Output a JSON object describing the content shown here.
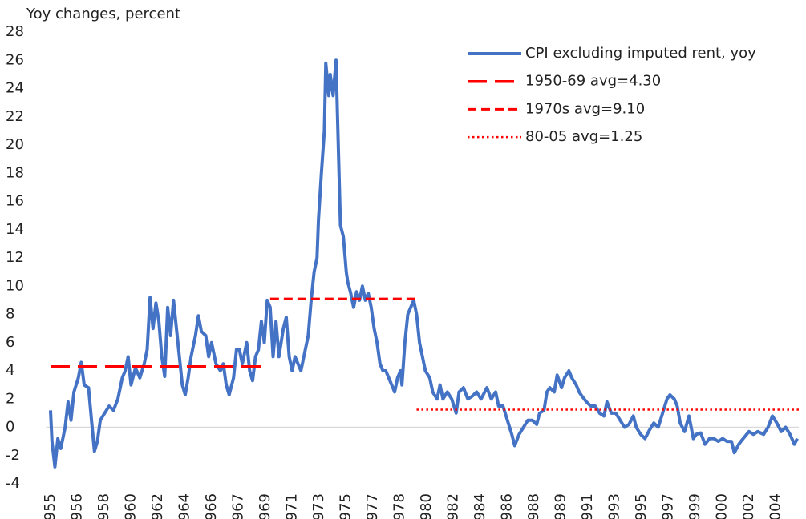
{
  "chart_data": {
    "type": "line",
    "ylabel": "Yoy changes, percent",
    "xlim": [
      1954.7,
      2006.1
    ],
    "xticks": [
      {
        "value": 1955,
        "label": "1955"
      },
      {
        "value": 1956.84,
        "label": "1956"
      },
      {
        "value": 1958.67,
        "label": "1958"
      },
      {
        "value": 1960.51,
        "label": "1960"
      },
      {
        "value": 1962.34,
        "label": "1962"
      },
      {
        "value": 1964.18,
        "label": "1964"
      },
      {
        "value": 1966.01,
        "label": "1966"
      },
      {
        "value": 1967.85,
        "label": "1967"
      },
      {
        "value": 1969.68,
        "label": "1969"
      },
      {
        "value": 1971.52,
        "label": "1971"
      },
      {
        "value": 1973.35,
        "label": "1973"
      },
      {
        "value": 1975.19,
        "label": "1975"
      },
      {
        "value": 1977.02,
        "label": "1977"
      },
      {
        "value": 1978.86,
        "label": "1978"
      },
      {
        "value": 1980.69,
        "label": "1980"
      },
      {
        "value": 1982.53,
        "label": "1982"
      },
      {
        "value": 1984.36,
        "label": "1984"
      },
      {
        "value": 1986.2,
        "label": "1986"
      },
      {
        "value": 1988.03,
        "label": "1988"
      },
      {
        "value": 1989.87,
        "label": "1989"
      },
      {
        "value": 1991.7,
        "label": "1991"
      },
      {
        "value": 1993.54,
        "label": "1993"
      },
      {
        "value": 1995.37,
        "label": "1995"
      },
      {
        "value": 1997.21,
        "label": "1997"
      },
      {
        "value": 1999.04,
        "label": "1999"
      },
      {
        "value": 2000.88,
        "label": "2000"
      },
      {
        "value": 2002.71,
        "label": "2002"
      },
      {
        "value": 2004.55,
        "label": "2004"
      }
    ],
    "ylim": [
      -4,
      28
    ],
    "yticks": [
      -4,
      -2,
      0,
      2,
      4,
      6,
      8,
      10,
      12,
      14,
      16,
      18,
      20,
      22,
      24,
      26,
      28
    ],
    "zero_line": true,
    "legend": "top-right",
    "series": [
      {
        "name": "CPI excluding imputed rent, yoy",
        "color": "#4472c4",
        "dash": "solid",
        "x": [
          1955.0,
          1955.1,
          1955.3,
          1955.5,
          1955.7,
          1956.0,
          1956.2,
          1956.4,
          1956.6,
          1956.9,
          1957.1,
          1957.3,
          1957.6,
          1957.8,
          1958.0,
          1958.2,
          1958.4,
          1958.7,
          1959.0,
          1959.3,
          1959.6,
          1959.9,
          1960.1,
          1960.3,
          1960.5,
          1960.8,
          1961.1,
          1961.4,
          1961.6,
          1961.8,
          1962.0,
          1962.2,
          1962.4,
          1962.6,
          1962.8,
          1963.0,
          1963.2,
          1963.4,
          1963.6,
          1963.8,
          1964.0,
          1964.2,
          1964.4,
          1964.6,
          1964.9,
          1965.1,
          1965.3,
          1965.6,
          1965.8,
          1966.0,
          1966.3,
          1966.6,
          1966.8,
          1967.0,
          1967.2,
          1967.5,
          1967.7,
          1967.9,
          1968.1,
          1968.4,
          1968.6,
          1968.8,
          1969.0,
          1969.2,
          1969.4,
          1969.6,
          1969.8,
          1970.0,
          1970.2,
          1970.4,
          1970.6,
          1970.9,
          1971.1,
          1971.3,
          1971.5,
          1971.7,
          1971.9,
          1972.1,
          1972.3,
          1972.6,
          1972.8,
          1973.0,
          1973.2,
          1973.3,
          1973.5,
          1973.7,
          1973.8,
          1974.0,
          1974.1,
          1974.3,
          1974.5,
          1974.6,
          1974.8,
          1975.0,
          1975.2,
          1975.3,
          1975.5,
          1975.7,
          1975.9,
          1976.1,
          1976.3,
          1976.5,
          1976.7,
          1976.9,
          1977.1,
          1977.3,
          1977.5,
          1977.7,
          1977.9,
          1978.1,
          1978.3,
          1978.5,
          1978.7,
          1978.9,
          1979.0,
          1979.2,
          1979.4,
          1979.6,
          1979.8,
          1980.0,
          1980.2,
          1980.4,
          1980.6,
          1980.9,
          1981.1,
          1981.4,
          1981.6,
          1981.8,
          1982.1,
          1982.4,
          1982.7,
          1982.9,
          1983.2,
          1983.5,
          1983.8,
          1984.1,
          1984.4,
          1984.8,
          1985.1,
          1985.4,
          1985.6,
          1985.9,
          1986.2,
          1986.5,
          1986.7,
          1987.0,
          1987.3,
          1987.6,
          1987.9,
          1988.2,
          1988.4,
          1988.7,
          1988.9,
          1989.1,
          1989.4,
          1989.6,
          1989.9,
          1990.1,
          1990.4,
          1990.6,
          1990.9,
          1991.1,
          1991.3,
          1991.6,
          1991.9,
          1992.2,
          1992.5,
          1992.8,
          1993.0,
          1993.3,
          1993.6,
          1993.9,
          1994.2,
          1994.5,
          1994.8,
          1995.0,
          1995.3,
          1995.6,
          1995.9,
          1996.2,
          1996.5,
          1996.8,
          1997.1,
          1997.3,
          1997.6,
          1997.8,
          1998.0,
          1998.3,
          1998.6,
          1998.9,
          1999.1,
          1999.4,
          1999.7,
          2000.0,
          2000.3,
          2000.6,
          2000.9,
          2001.2,
          2001.5,
          2001.7,
          2002.0,
          2002.3,
          2002.7,
          2003.0,
          2003.3,
          2003.7,
          2004.0,
          2004.3,
          2004.6,
          2004.9,
          2005.2,
          2005.5,
          2005.8,
          2006.0
        ],
        "values": [
          1.2,
          -1,
          -2.8,
          -0.8,
          -1.5,
          0,
          1.8,
          0.5,
          2.5,
          3.5,
          4.6,
          3,
          2.8,
          0.5,
          -1.7,
          -1,
          0.5,
          1,
          1.5,
          1.2,
          2,
          3.5,
          4,
          5,
          3,
          4.2,
          3.5,
          4.5,
          5.5,
          9.2,
          7,
          8.8,
          7.5,
          5,
          3.6,
          8.5,
          6.5,
          9,
          7,
          5,
          3,
          2.3,
          3.5,
          5,
          6.5,
          7.9,
          6.8,
          6.5,
          5,
          6,
          4.5,
          4,
          4.5,
          3,
          2.3,
          3.5,
          5.5,
          5.5,
          4.5,
          6,
          4,
          3.3,
          5,
          5.5,
          7.5,
          6,
          9,
          8.5,
          5,
          7.5,
          5,
          7,
          7.8,
          5,
          4,
          5,
          4.5,
          4,
          5,
          6.5,
          9,
          11,
          12,
          14.7,
          18,
          21,
          25.8,
          23.5,
          25,
          23.5,
          26,
          22,
          14.3,
          13.5,
          11,
          10.3,
          9.5,
          8.5,
          9.6,
          9,
          10,
          9,
          9.5,
          8.5,
          7,
          6,
          4.5,
          4,
          4,
          3.5,
          3,
          2.5,
          3.5,
          4,
          3,
          6,
          8,
          8.5,
          9,
          8,
          6,
          5,
          4,
          3.5,
          2.5,
          2,
          3,
          2,
          2.5,
          2,
          1,
          2.5,
          2.8,
          2,
          2.2,
          2.5,
          2,
          2.8,
          2,
          2.5,
          1.5,
          1.5,
          0.5,
          -0.5,
          -1.3,
          -0.5,
          0,
          0.5,
          0.5,
          0.2,
          1,
          1.2,
          2.5,
          2.8,
          2.5,
          3.7,
          2.8,
          3.5,
          4,
          3.5,
          3,
          2.5,
          2.2,
          1.8,
          1.5,
          1.5,
          1,
          0.8,
          1.8,
          1,
          1,
          0.5,
          0,
          0.2,
          0.8,
          0,
          -0.5,
          -0.8,
          -0.2,
          0.3,
          0,
          1,
          2,
          2.3,
          2,
          1.5,
          0.3,
          -0.3,
          0.8,
          -0.8,
          -0.5,
          -0.4,
          -1.2,
          -0.8,
          -0.8,
          -1,
          -0.8,
          -1,
          -1,
          -1.8,
          -1.2,
          -0.8,
          -0.3,
          -0.5,
          -0.3,
          -0.5,
          0,
          0.8,
          0.3,
          -0.3,
          0,
          -0.5,
          -1.2,
          -0.8
        ]
      },
      {
        "name": "1950-69 avg=4.30",
        "color": "#ff0000",
        "dash": "long-dash",
        "x": [
          1955,
          1969.6
        ],
        "values": [
          4.3,
          4.3
        ]
      },
      {
        "name": "1970s avg=9.10",
        "color": "#ff0000",
        "dash": "dash",
        "x": [
          1970.0,
          1980.1
        ],
        "values": [
          9.1,
          9.1
        ]
      },
      {
        "name": "80-05 avg=1.25",
        "color": "#ff0000",
        "dash": "dot",
        "x": [
          1980.0,
          2006.1
        ],
        "values": [
          1.25,
          1.25
        ]
      }
    ]
  }
}
